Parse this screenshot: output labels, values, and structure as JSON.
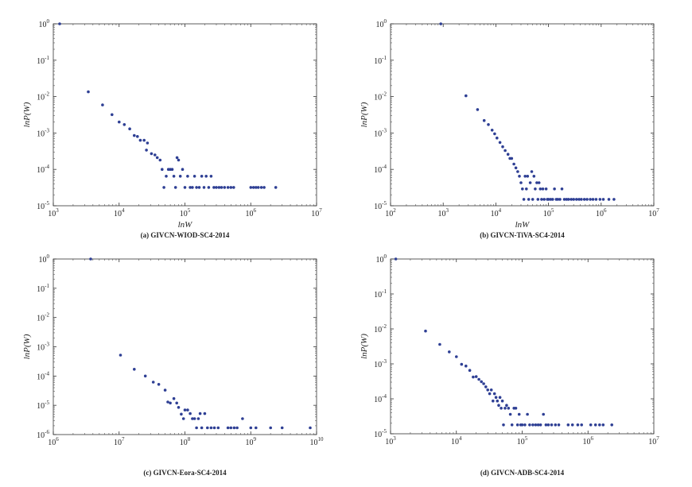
{
  "figure_captions": [
    "(a) GIVCN-WIOD-SC4-2014",
    "(b) GIVCN-TiVA-SC4-2014",
    "(c) GIVCN-Eora-SC4-2014",
    "(d) GIVCN-ADB-SC4-2014"
  ],
  "chart_data": [
    {
      "type": "scatter",
      "caption": "(a) GIVCN-WIOD-SC4-2014",
      "xlabel": "lnW",
      "ylabel": "lnP(W)",
      "xscale": "log",
      "yscale": "log",
      "xlim": [
        1000,
        10000000
      ],
      "ylim": [
        1e-05,
        1
      ],
      "x_ticks": [
        3,
        4,
        5,
        6,
        7
      ],
      "y_ticks": [
        -5,
        -4,
        -3,
        -2,
        -1,
        0
      ],
      "marker_color": "#2e3f94",
      "grid": false,
      "points": [
        [
          1250,
          1
        ],
        [
          3400,
          0.0135
        ],
        [
          5600,
          0.0059
        ],
        [
          7800,
          0.0032
        ],
        [
          10000,
          0.002
        ],
        [
          12000,
          0.0017
        ],
        [
          14500,
          0.0013
        ],
        [
          17000,
          0.00085
        ],
        [
          19000,
          0.0008
        ],
        [
          21000,
          0.00063
        ],
        [
          24000,
          0.00063
        ],
        [
          27000,
          0.00053
        ],
        [
          26000,
          0.00034
        ],
        [
          31000,
          0.00027
        ],
        [
          35000,
          0.00025
        ],
        [
          38000,
          0.00021
        ],
        [
          42000,
          0.00018
        ],
        [
          45000,
          0.0001
        ],
        [
          48000,
          3.2e-05
        ],
        [
          52000,
          6.5e-05
        ],
        [
          56000,
          0.0001
        ],
        [
          60000,
          0.0001
        ],
        [
          64000,
          0.0001
        ],
        [
          68000,
          6.5e-05
        ],
        [
          72000,
          3.2e-05
        ],
        [
          76000,
          0.00021
        ],
        [
          80000,
          0.00018
        ],
        [
          85000,
          6.5e-05
        ],
        [
          92000,
          0.0001
        ],
        [
          100000,
          3.2e-05
        ],
        [
          110000,
          6.5e-05
        ],
        [
          120000,
          3.2e-05
        ],
        [
          130000,
          3.2e-05
        ],
        [
          140000,
          6.5e-05
        ],
        [
          150000,
          3.2e-05
        ],
        [
          165000,
          3.2e-05
        ],
        [
          180000,
          6.5e-05
        ],
        [
          195000,
          3.2e-05
        ],
        [
          210000,
          6.5e-05
        ],
        [
          230000,
          3.2e-05
        ],
        [
          250000,
          6.5e-05
        ],
        [
          275000,
          3.2e-05
        ],
        [
          300000,
          3.2e-05
        ],
        [
          330000,
          3.2e-05
        ],
        [
          360000,
          3.2e-05
        ],
        [
          400000,
          3.2e-05
        ],
        [
          450000,
          3.2e-05
        ],
        [
          500000,
          3.2e-05
        ],
        [
          550000,
          3.2e-05
        ],
        [
          1000000,
          3.2e-05
        ],
        [
          1100000,
          3.2e-05
        ],
        [
          1200000,
          3.2e-05
        ],
        [
          1300000,
          3.2e-05
        ],
        [
          1450000,
          3.2e-05
        ],
        [
          1600000,
          3.2e-05
        ],
        [
          2400000,
          3.2e-05
        ]
      ]
    },
    {
      "type": "scatter",
      "caption": "(b) GIVCN-TiVA-SC4-2014",
      "xlabel": "lnW",
      "ylabel": "lnP(W)",
      "xscale": "log",
      "yscale": "log",
      "xlim": [
        100,
        10000000
      ],
      "ylim": [
        1e-05,
        1
      ],
      "x_ticks": [
        2,
        3,
        4,
        5,
        6,
        7
      ],
      "y_ticks": [
        -5,
        -4,
        -3,
        -2,
        -1,
        0
      ],
      "marker_color": "#2e3f94",
      "grid": false,
      "points": [
        [
          900,
          1
        ],
        [
          2700,
          0.0105
        ],
        [
          4500,
          0.0044
        ],
        [
          6000,
          0.0022
        ],
        [
          7200,
          0.0017
        ],
        [
          8500,
          0.0012
        ],
        [
          9500,
          0.00095
        ],
        [
          10500,
          0.00073
        ],
        [
          12000,
          0.00055
        ],
        [
          13500,
          0.00042
        ],
        [
          15000,
          0.00033
        ],
        [
          17000,
          0.00026
        ],
        [
          18500,
          0.0002
        ],
        [
          20000,
          0.0002
        ],
        [
          22000,
          0.00014
        ],
        [
          24000,
          0.00011
        ],
        [
          26000,
          8.7e-05
        ],
        [
          28000,
          6.5e-05
        ],
        [
          30000,
          4.3e-05
        ],
        [
          32000,
          2.9e-05
        ],
        [
          34000,
          1.5e-05
        ],
        [
          36000,
          6.5e-05
        ],
        [
          38000,
          2.9e-05
        ],
        [
          40000,
          6.5e-05
        ],
        [
          42000,
          1.5e-05
        ],
        [
          45000,
          4.3e-05
        ],
        [
          48000,
          8.7e-05
        ],
        [
          50000,
          1.5e-05
        ],
        [
          53000,
          6.5e-05
        ],
        [
          56000,
          2.9e-05
        ],
        [
          60000,
          4.3e-05
        ],
        [
          63000,
          1.5e-05
        ],
        [
          66000,
          4.3e-05
        ],
        [
          70000,
          2.9e-05
        ],
        [
          74000,
          1.5e-05
        ],
        [
          78000,
          2.9e-05
        ],
        [
          83000,
          1.5e-05
        ],
        [
          90000,
          2.9e-05
        ],
        [
          95000,
          1.5e-05
        ],
        [
          100000,
          1.5e-05
        ],
        [
          110000,
          1.5e-05
        ],
        [
          120000,
          1.5e-05
        ],
        [
          130000,
          2.9e-05
        ],
        [
          140000,
          1.5e-05
        ],
        [
          150000,
          1.5e-05
        ],
        [
          165000,
          1.5e-05
        ],
        [
          180000,
          2.9e-05
        ],
        [
          200000,
          1.5e-05
        ],
        [
          220000,
          1.5e-05
        ],
        [
          240000,
          1.5e-05
        ],
        [
          270000,
          1.5e-05
        ],
        [
          300000,
          1.5e-05
        ],
        [
          340000,
          1.5e-05
        ],
        [
          380000,
          1.5e-05
        ],
        [
          420000,
          1.5e-05
        ],
        [
          480000,
          1.5e-05
        ],
        [
          540000,
          1.5e-05
        ],
        [
          620000,
          1.5e-05
        ],
        [
          700000,
          1.5e-05
        ],
        [
          800000,
          1.5e-05
        ],
        [
          950000,
          1.5e-05
        ],
        [
          1100000,
          1.5e-05
        ],
        [
          1400000,
          1.5e-05
        ],
        [
          1750000,
          1.5e-05
        ]
      ]
    },
    {
      "type": "scatter",
      "caption": "(c) GIVCN-Eora-SC4-2014",
      "xlabel": "",
      "ylabel": "lnP(W)",
      "xscale": "log",
      "yscale": "log",
      "xlim": [
        1000000,
        10000000000
      ],
      "ylim": [
        1e-06,
        1
      ],
      "x_ticks": [
        6,
        7,
        8,
        9,
        10
      ],
      "y_ticks": [
        -6,
        -5,
        -4,
        -3,
        -2,
        -1,
        0
      ],
      "marker_color": "#2e3f94",
      "grid": false,
      "points": [
        [
          3700000,
          1
        ],
        [
          10500000,
          0.00052
        ],
        [
          17000000,
          0.00017
        ],
        [
          25000000,
          0.0001
        ],
        [
          33000000,
          6.2e-05
        ],
        [
          40000000,
          5.2e-05
        ],
        [
          50000000,
          3.3e-05
        ],
        [
          55000000,
          1.3e-05
        ],
        [
          60000000,
          1.2e-05
        ],
        [
          68000000,
          1.7e-05
        ],
        [
          75000000,
          1.2e-05
        ],
        [
          80000000,
          8.5e-06
        ],
        [
          88000000,
          5e-06
        ],
        [
          95000000,
          3.5e-06
        ],
        [
          100000000,
          6.9e-06
        ],
        [
          110000000,
          6.9e-06
        ],
        [
          120000000,
          5.2e-06
        ],
        [
          130000000,
          3.5e-06
        ],
        [
          140000000,
          3.5e-06
        ],
        [
          150000000,
          1.7e-06
        ],
        [
          160000000,
          3.5e-06
        ],
        [
          170000000,
          5.2e-06
        ],
        [
          180000000,
          1.7e-06
        ],
        [
          200000000,
          5.2e-06
        ],
        [
          220000000,
          1.7e-06
        ],
        [
          250000000,
          1.7e-06
        ],
        [
          280000000,
          1.7e-06
        ],
        [
          320000000,
          1.7e-06
        ],
        [
          450000000,
          1.7e-06
        ],
        [
          500000000,
          1.7e-06
        ],
        [
          560000000,
          1.7e-06
        ],
        [
          620000000,
          1.7e-06
        ],
        [
          750000000,
          3.5e-06
        ],
        [
          1000000000,
          1.7e-06
        ],
        [
          1200000000,
          1.7e-06
        ],
        [
          2000000000,
          1.7e-06
        ],
        [
          3000000000,
          1.7e-06
        ],
        [
          8000000000,
          1.7e-06
        ]
      ]
    },
    {
      "type": "scatter",
      "caption": "(d) GIVCN-ADB-SC4-2014",
      "xlabel": "",
      "ylabel": "lnP(W)",
      "xscale": "log",
      "yscale": "log",
      "xlim": [
        1000,
        10000000
      ],
      "ylim": [
        1e-05,
        1
      ],
      "x_ticks": [
        3,
        4,
        5,
        6,
        7
      ],
      "y_ticks": [
        -5,
        -4,
        -3,
        -2,
        -1,
        0
      ],
      "marker_color": "#2e3f94",
      "grid": false,
      "points": [
        [
          1200,
          1
        ],
        [
          3400,
          0.0087
        ],
        [
          5600,
          0.0036
        ],
        [
          7800,
          0.0022
        ],
        [
          10000,
          0.0016
        ],
        [
          12000,
          0.00097
        ],
        [
          14000,
          0.00087
        ],
        [
          16000,
          0.00065
        ],
        [
          18000,
          0.00042
        ],
        [
          20000,
          0.00043
        ],
        [
          22000,
          0.00036
        ],
        [
          24000,
          0.00031
        ],
        [
          26000,
          0.00027
        ],
        [
          28000,
          0.00022
        ],
        [
          30000,
          0.00018
        ],
        [
          32000,
          0.00014
        ],
        [
          34000,
          0.00018
        ],
        [
          36000,
          8.7e-05
        ],
        [
          38000,
          0.00014
        ],
        [
          40000,
          0.00011
        ],
        [
          42000,
          8.7e-05
        ],
        [
          44000,
          6.5e-05
        ],
        [
          46000,
          0.00011
        ],
        [
          48000,
          5.4e-05
        ],
        [
          50000,
          8.7e-05
        ],
        [
          52000,
          1.8e-05
        ],
        [
          55000,
          5.4e-05
        ],
        [
          58000,
          6.5e-05
        ],
        [
          62000,
          5.4e-05
        ],
        [
          66000,
          3.6e-05
        ],
        [
          70000,
          1.8e-05
        ],
        [
          75000,
          5.4e-05
        ],
        [
          80000,
          5.4e-05
        ],
        [
          85000,
          1.8e-05
        ],
        [
          90000,
          3.6e-05
        ],
        [
          95000,
          1.8e-05
        ],
        [
          100000,
          1.8e-05
        ],
        [
          110000,
          1.8e-05
        ],
        [
          120000,
          3.6e-05
        ],
        [
          130000,
          1.8e-05
        ],
        [
          145000,
          1.8e-05
        ],
        [
          160000,
          1.8e-05
        ],
        [
          175000,
          1.8e-05
        ],
        [
          190000,
          1.8e-05
        ],
        [
          210000,
          3.6e-05
        ],
        [
          230000,
          1.8e-05
        ],
        [
          250000,
          1.8e-05
        ],
        [
          280000,
          1.8e-05
        ],
        [
          320000,
          1.8e-05
        ],
        [
          360000,
          1.8e-05
        ],
        [
          500000,
          1.8e-05
        ],
        [
          580000,
          1.8e-05
        ],
        [
          700000,
          1.8e-05
        ],
        [
          800000,
          1.8e-05
        ],
        [
          1100000,
          1.8e-05
        ],
        [
          1300000,
          1.8e-05
        ],
        [
          1500000,
          1.8e-05
        ],
        [
          1700000,
          1.8e-05
        ],
        [
          2300000,
          1.8e-05
        ]
      ]
    }
  ]
}
